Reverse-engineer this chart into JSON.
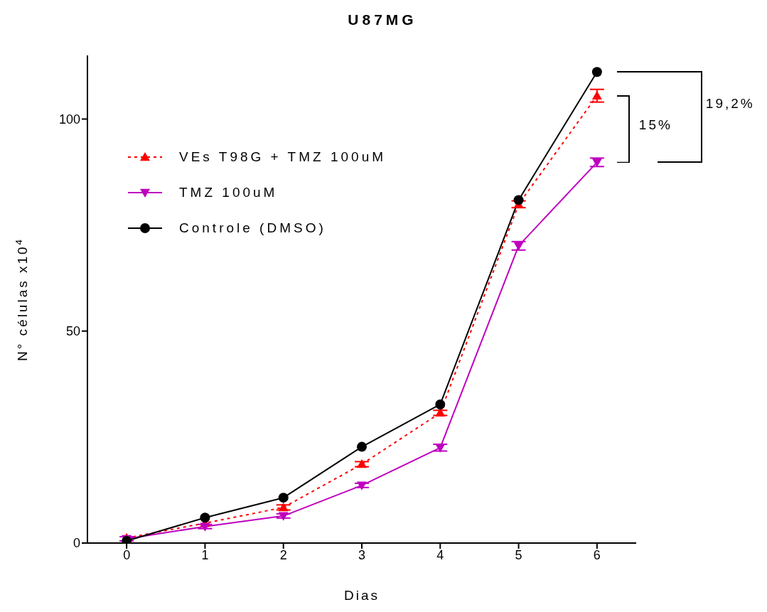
{
  "chart_data": {
    "type": "line",
    "title": "U87MG",
    "xlabel": "Dias",
    "ylabel": "N° células x10$^{4}$",
    "x": [
      0,
      1,
      2,
      3,
      4,
      5,
      6
    ],
    "xlim": [
      -0.5,
      6.5
    ],
    "xticks": [
      0,
      1,
      2,
      3,
      4,
      5,
      6
    ],
    "ylim": [
      0,
      115
    ],
    "yticks": [
      0,
      50,
      100
    ],
    "grid": false,
    "legend": "top left",
    "series": [
      {
        "name": "VEs T98G + TMZ 100uM",
        "color": "#ff0000",
        "marker": "triangle",
        "line_style": "dotted",
        "values": [
          1.2,
          4.7,
          8.4,
          18.6,
          30.7,
          79.9,
          105.5
        ],
        "errors": [
          null,
          null,
          0.6,
          0.6,
          0.6,
          0.8,
          1.5
        ]
      },
      {
        "name": "TMZ 100uM",
        "color": "#bf00bf",
        "marker": "triangle-down",
        "line_style": "solid",
        "values": [
          1.0,
          3.9,
          6.4,
          13.6,
          22.5,
          70.1,
          89.8
        ],
        "errors": [
          0.5,
          0.5,
          0.5,
          0.5,
          0.8,
          1.0,
          1.0
        ]
      },
      {
        "name": "Controle (DMSO)",
        "color": "#000000",
        "marker": "circle",
        "line_style": "solid",
        "values": [
          0.5,
          6.0,
          10.7,
          22.7,
          32.7,
          80.9,
          111.1
        ]
      }
    ],
    "annotations": [
      "15%",
      "19,2%"
    ]
  }
}
